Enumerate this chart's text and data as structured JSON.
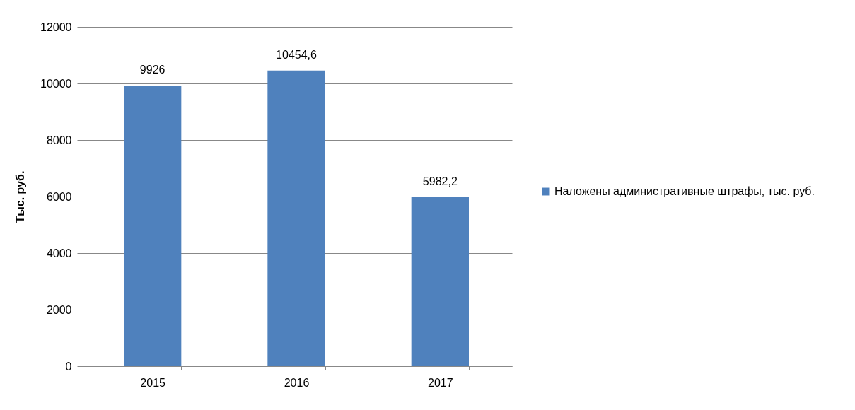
{
  "chart_data": {
    "type": "bar",
    "ylabel": "Тыс. руб.",
    "categories": [
      "2015",
      "2016",
      "2017"
    ],
    "series": [
      {
        "name": "Наложены административные штрафы, тыс. руб.",
        "color": "#4f81bd",
        "values": [
          9926,
          10454.6,
          5982.2
        ],
        "value_labels": [
          "9926",
          "10454,6",
          "5982,2"
        ]
      }
    ],
    "ylim": [
      0,
      12000
    ],
    "yticks": [
      0,
      2000,
      4000,
      6000,
      8000,
      10000,
      12000
    ],
    "grid": "y",
    "legend": "right"
  }
}
